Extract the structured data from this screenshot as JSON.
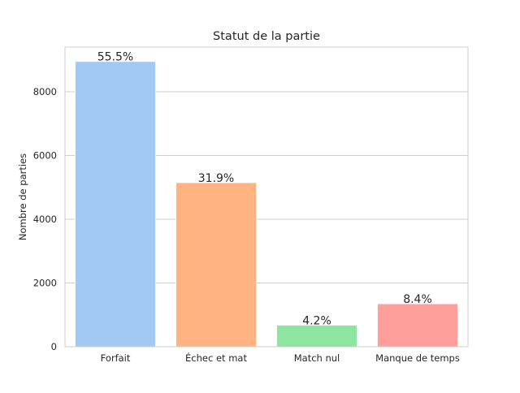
{
  "chart_data": {
    "type": "bar",
    "title": "Statut de la partie",
    "xlabel": "",
    "ylabel": "Nombre de parties",
    "categories": [
      "Forfait",
      "Échec et mat",
      "Match nul",
      "Manque de temps"
    ],
    "values": [
      8950,
      5150,
      680,
      1350
    ],
    "data_labels": [
      "55.5%",
      "31.9%",
      "4.2%",
      "8.4%"
    ],
    "colors": [
      "#a1c9f4",
      "#ffb482",
      "#8de5a1",
      "#ff9f9b"
    ],
    "ylim": [
      0,
      9400
    ],
    "yticks": [
      0,
      2000,
      4000,
      6000,
      8000
    ],
    "grid": true,
    "legend": "none"
  }
}
